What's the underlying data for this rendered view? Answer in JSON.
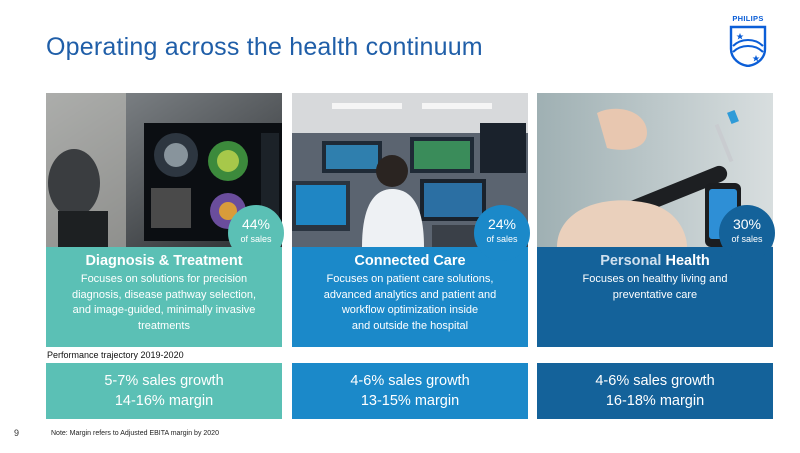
{
  "slide": {
    "title": "Operating across the health continuum",
    "logo_text": "PHILIPS",
    "performance_label": "Performance trajectory 2019-2020",
    "page_number": "9",
    "note": "Note: Margin refers to Adjusted EBITA margin by 2020"
  },
  "columns": [
    {
      "title": "Diagnosis & Treatment",
      "description_lines": [
        "Focuses on solutions for precision",
        "diagnosis, disease pathway selection,",
        "and image-guided, minimally invasive",
        "treatments"
      ],
      "badge_percent": "44%",
      "badge_sub": "of sales",
      "growth_line1": "5-7% sales growth",
      "growth_line2": "14-16% margin"
    },
    {
      "title": "Connected Care",
      "description_lines": [
        "Focuses on patient care solutions,",
        "advanced analytics and patient and",
        "workflow optimization inside",
        "and outside the hospital"
      ],
      "badge_percent": "24%",
      "badge_sub": "of sales",
      "growth_line1": "4-6% sales growth",
      "growth_line2": "13-15% margin"
    },
    {
      "title_part1": "Personal",
      "title_part2": "Health",
      "description_lines": [
        "Focuses on healthy living and",
        "preventative care"
      ],
      "badge_percent": "30%",
      "badge_sub": "of sales",
      "growth_line1": "4-6% sales growth",
      "growth_line2": "16-18% margin"
    }
  ],
  "colors": {
    "title_blue": "#1f5ea8",
    "teal": "#5bc0b5",
    "mid_blue": "#1b89c9",
    "dark_blue": "#14629a"
  },
  "icons": {
    "logo": "philips-shield-logo"
  }
}
